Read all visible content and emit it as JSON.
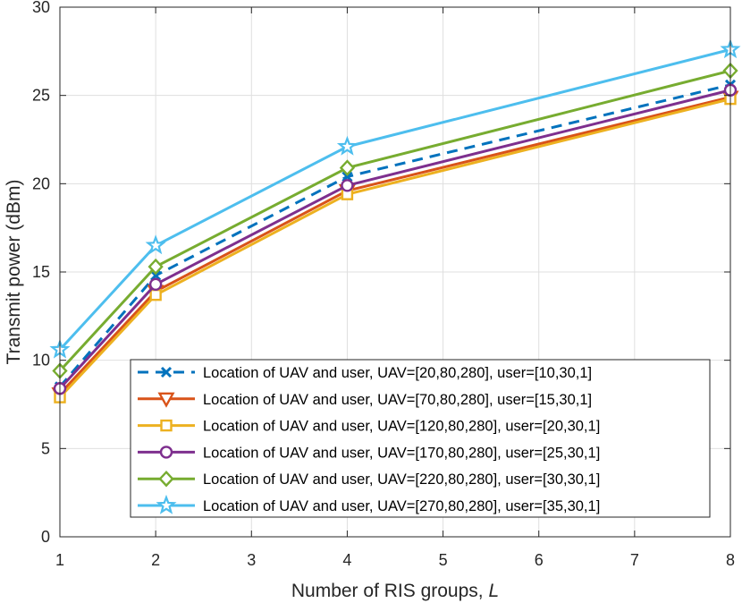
{
  "chart_data": {
    "type": "line",
    "title": "",
    "xlabel": "Number of RIS groups, ",
    "xlabel_var": "L",
    "ylabel": "Transmit power (dBm)",
    "xlim": [
      1,
      8
    ],
    "ylim": [
      0,
      30
    ],
    "xticks": [
      "1",
      "2",
      "3",
      "4",
      "5",
      "6",
      "7",
      "8"
    ],
    "yticks": [
      "0",
      "5",
      "10",
      "15",
      "20",
      "25",
      "30"
    ],
    "grid": true,
    "legend_position": "bottom-right",
    "x": [
      1,
      2,
      4,
      8
    ],
    "series": [
      {
        "name": "Location of UAV and user, UAV=[20,80,280], user=[10,30,1]",
        "values": [
          8.5,
          14.8,
          20.4,
          25.6
        ],
        "color": "#0072BD",
        "marker": "x",
        "dashed": true
      },
      {
        "name": "Location of UAV and user, UAV=[70,80,280], user=[15,30,1]",
        "values": [
          8.1,
          13.9,
          19.6,
          24.9
        ],
        "color": "#D95319",
        "marker": "triangle-down",
        "dashed": false
      },
      {
        "name": "Location of UAV and user, UAV=[120,80,280], user=[20,30,1]",
        "values": [
          7.9,
          13.7,
          19.4,
          24.8
        ],
        "color": "#EDB120",
        "marker": "square",
        "dashed": false
      },
      {
        "name": "Location of UAV and user, UAV=[170,80,280], user=[25,30,1]",
        "values": [
          8.4,
          14.3,
          19.9,
          25.3
        ],
        "color": "#7E2F8E",
        "marker": "circle",
        "dashed": false
      },
      {
        "name": "Location of UAV and user, UAV=[220,80,280], user=[30,30,1]",
        "values": [
          9.4,
          15.3,
          20.9,
          26.4
        ],
        "color": "#77AC30",
        "marker": "diamond",
        "dashed": false
      },
      {
        "name": "Location of UAV and user, UAV=[270,80,280], user=[35,30,1]",
        "values": [
          10.6,
          16.5,
          22.1,
          27.6
        ],
        "color": "#4DBEEE",
        "marker": "star",
        "dashed": false
      }
    ]
  }
}
